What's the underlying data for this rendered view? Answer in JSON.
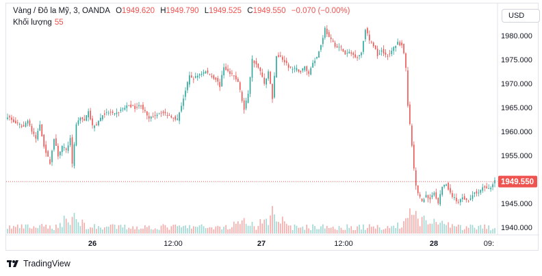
{
  "header": {
    "symbol": "Vàng / Đô la Mỹ, 3, OANDA",
    "open_label": "O",
    "open": "1949.620",
    "high_label": "H",
    "high": "1949.790",
    "low_label": "L",
    "low": "1949.525",
    "close_label": "C",
    "close": "1949.550",
    "change": "−0.070 (−0.00%)",
    "volume_label": "Khối lượng",
    "volume": "55"
  },
  "currency_button": "USD",
  "footer": {
    "brand": "TradingView"
  },
  "colors": {
    "up": "#26a69a",
    "down": "#ef5350",
    "up_vol": "#9fd8d2",
    "down_vol": "#f7a9a7",
    "price_line": "#ef5350"
  },
  "chart_data": {
    "type": "candlestick",
    "y_axis": {
      "min": 1940,
      "max": 1980,
      "ticks": [
        "1940.000",
        "1945.000",
        "1950.000",
        "1955.000",
        "1960.000",
        "1965.000",
        "1970.000",
        "1975.000",
        "1980.000"
      ]
    },
    "x_axis": {
      "ticks": [
        "26",
        "12:00",
        "27",
        "12:00",
        "28",
        "09:"
      ]
    },
    "last_price_label": "1949.550",
    "last_price": 1949.55,
    "price_path": [
      [
        0,
        1963.2
      ],
      [
        3,
        1962.0
      ],
      [
        5,
        1961.5
      ],
      [
        8,
        1961.0
      ],
      [
        10,
        1962.5
      ],
      [
        12,
        1960.0
      ],
      [
        14,
        1958.5
      ],
      [
        16,
        1961.5
      ],
      [
        18,
        1957.0
      ],
      [
        20,
        1954.5
      ],
      [
        21,
        1953.5
      ],
      [
        23,
        1958.5
      ],
      [
        25,
        1955.0
      ],
      [
        27,
        1957.0
      ],
      [
        29,
        1956.0
      ],
      [
        31,
        1958.5
      ],
      [
        32,
        1953.0
      ],
      [
        34,
        1961.5
      ],
      [
        36,
        1963.0
      ],
      [
        38,
        1962.0
      ],
      [
        40,
        1964.5
      ],
      [
        42,
        1961.0
      ],
      [
        44,
        1961.5
      ],
      [
        47,
        1963.5
      ],
      [
        50,
        1964.0
      ],
      [
        53,
        1963.5
      ],
      [
        56,
        1964.5
      ],
      [
        60,
        1965.5
      ],
      [
        63,
        1965.0
      ],
      [
        66,
        1965.5
      ],
      [
        68,
        1964.0
      ],
      [
        70,
        1962.5
      ],
      [
        73,
        1963.5
      ],
      [
        76,
        1964.0
      ],
      [
        79,
        1963.5
      ],
      [
        82,
        1963.0
      ],
      [
        84,
        1962.5
      ],
      [
        86,
        1965.5
      ],
      [
        88,
        1968.5
      ],
      [
        90,
        1971.5
      ],
      [
        92,
        1971.0
      ],
      [
        95,
        1972.0
      ],
      [
        98,
        1972.5
      ],
      [
        101,
        1971.5
      ],
      [
        103,
        1971.0
      ],
      [
        105,
        1969.5
      ],
      [
        107,
        1973.5
      ],
      [
        110,
        1972.0
      ],
      [
        112,
        1971.5
      ],
      [
        114,
        1970.5
      ],
      [
        116,
        1966.5
      ],
      [
        117,
        1964.5
      ],
      [
        119,
        1968.0
      ],
      [
        121,
        1975.0
      ],
      [
        123,
        1974.0
      ],
      [
        125,
        1972.5
      ],
      [
        127,
        1970.0
      ],
      [
        129,
        1972.5
      ],
      [
        131,
        1967.0
      ],
      [
        133,
        1976.0
      ],
      [
        135,
        1975.5
      ],
      [
        137,
        1974.5
      ],
      [
        139,
        1973.5
      ],
      [
        141,
        1973.0
      ],
      [
        143,
        1973.0
      ],
      [
        145,
        1972.5
      ],
      [
        147,
        1973.5
      ],
      [
        149,
        1972.0
      ],
      [
        151,
        1974.5
      ],
      [
        153,
        1975.5
      ],
      [
        155,
        1978.0
      ],
      [
        157,
        1981.5
      ],
      [
        159,
        1979.5
      ],
      [
        161,
        1978.5
      ],
      [
        163,
        1977.5
      ],
      [
        165,
        1977.5
      ],
      [
        167,
        1976.0
      ],
      [
        169,
        1976.5
      ],
      [
        171,
        1976.0
      ],
      [
        173,
        1975.5
      ],
      [
        175,
        1976.5
      ],
      [
        177,
        1981.5
      ],
      [
        179,
        1979.0
      ],
      [
        181,
        1978.0
      ],
      [
        183,
        1976.0
      ],
      [
        185,
        1977.0
      ],
      [
        187,
        1976.0
      ],
      [
        189,
        1976.0
      ],
      [
        191,
        1977.5
      ],
      [
        193,
        1978.5
      ],
      [
        195,
        1978.0
      ],
      [
        196,
        1976.5
      ],
      [
        197,
        1973.0
      ],
      [
        198,
        1965.5
      ],
      [
        199,
        1961.5
      ],
      [
        200,
        1957.0
      ],
      [
        201,
        1952.0
      ],
      [
        202,
        1948.5
      ],
      [
        203,
        1947.0
      ],
      [
        205,
        1945.5
      ],
      [
        207,
        1946.5
      ],
      [
        209,
        1946.0
      ],
      [
        211,
        1947.5
      ],
      [
        213,
        1945.0
      ],
      [
        215,
        1948.5
      ],
      [
        217,
        1949.0
      ],
      [
        219,
        1947.0
      ],
      [
        221,
        1946.0
      ],
      [
        223,
        1945.0
      ],
      [
        225,
        1946.5
      ],
      [
        227,
        1945.5
      ],
      [
        229,
        1946.0
      ],
      [
        231,
        1947.5
      ],
      [
        233,
        1947.0
      ],
      [
        235,
        1948.5
      ],
      [
        237,
        1948.0
      ],
      [
        239,
        1948.5
      ],
      [
        241,
        1949.55
      ]
    ],
    "volume_bursts": [
      [
        32,
        2.2
      ],
      [
        116,
        1.8
      ],
      [
        131,
        2.8
      ],
      [
        199,
        2.4
      ],
      [
        206,
        1.6
      ],
      [
        214,
        1.5
      ],
      [
        241,
        0.9
      ]
    ]
  }
}
